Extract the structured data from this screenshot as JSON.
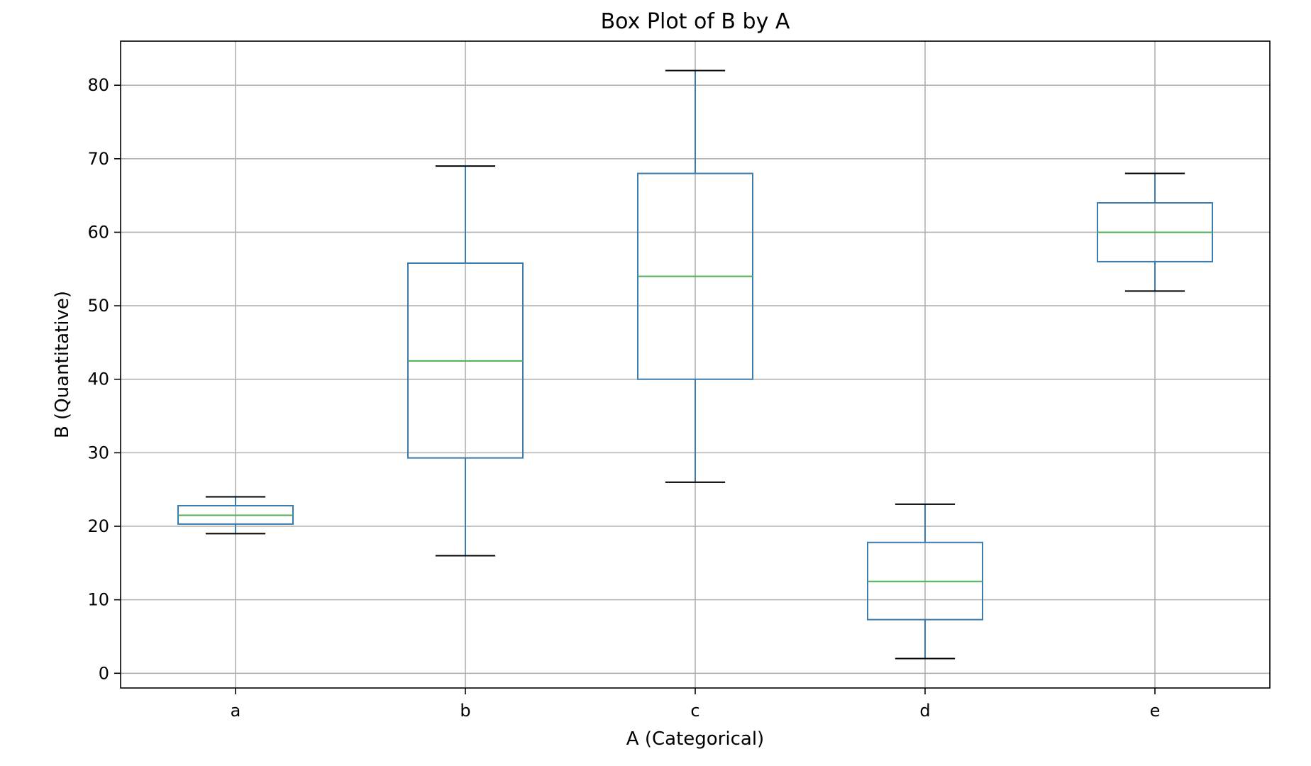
{
  "chart_data": {
    "type": "box",
    "title": "Box Plot of B by A",
    "xlabel": "A (Categorical)",
    "ylabel": "B (Quantitative)",
    "categories": [
      "a",
      "b",
      "c",
      "d",
      "e"
    ],
    "yticks": [
      0,
      10,
      20,
      30,
      40,
      50,
      60,
      70,
      80
    ],
    "ylim": [
      -2,
      86
    ],
    "grid": true,
    "boxes": [
      {
        "category": "a",
        "whisker_low": 19,
        "q1": 20.3,
        "median": 21.5,
        "q3": 22.8,
        "whisker_high": 24
      },
      {
        "category": "b",
        "whisker_low": 16,
        "q1": 29.3,
        "median": 42.5,
        "q3": 55.8,
        "whisker_high": 69
      },
      {
        "category": "c",
        "whisker_low": 26,
        "q1": 40,
        "median": 54,
        "q3": 68,
        "whisker_high": 82
      },
      {
        "category": "d",
        "whisker_low": 2,
        "q1": 7.3,
        "median": 12.5,
        "q3": 17.8,
        "whisker_high": 23
      },
      {
        "category": "e",
        "whisker_low": 52,
        "q1": 56,
        "median": 60,
        "q3": 64,
        "whisker_high": 68
      }
    ],
    "colors": {
      "box": "#3a7bb0",
      "median": "#4caf50",
      "cap": "#000000",
      "grid": "#b0b0b0",
      "axes": "#000000"
    }
  }
}
